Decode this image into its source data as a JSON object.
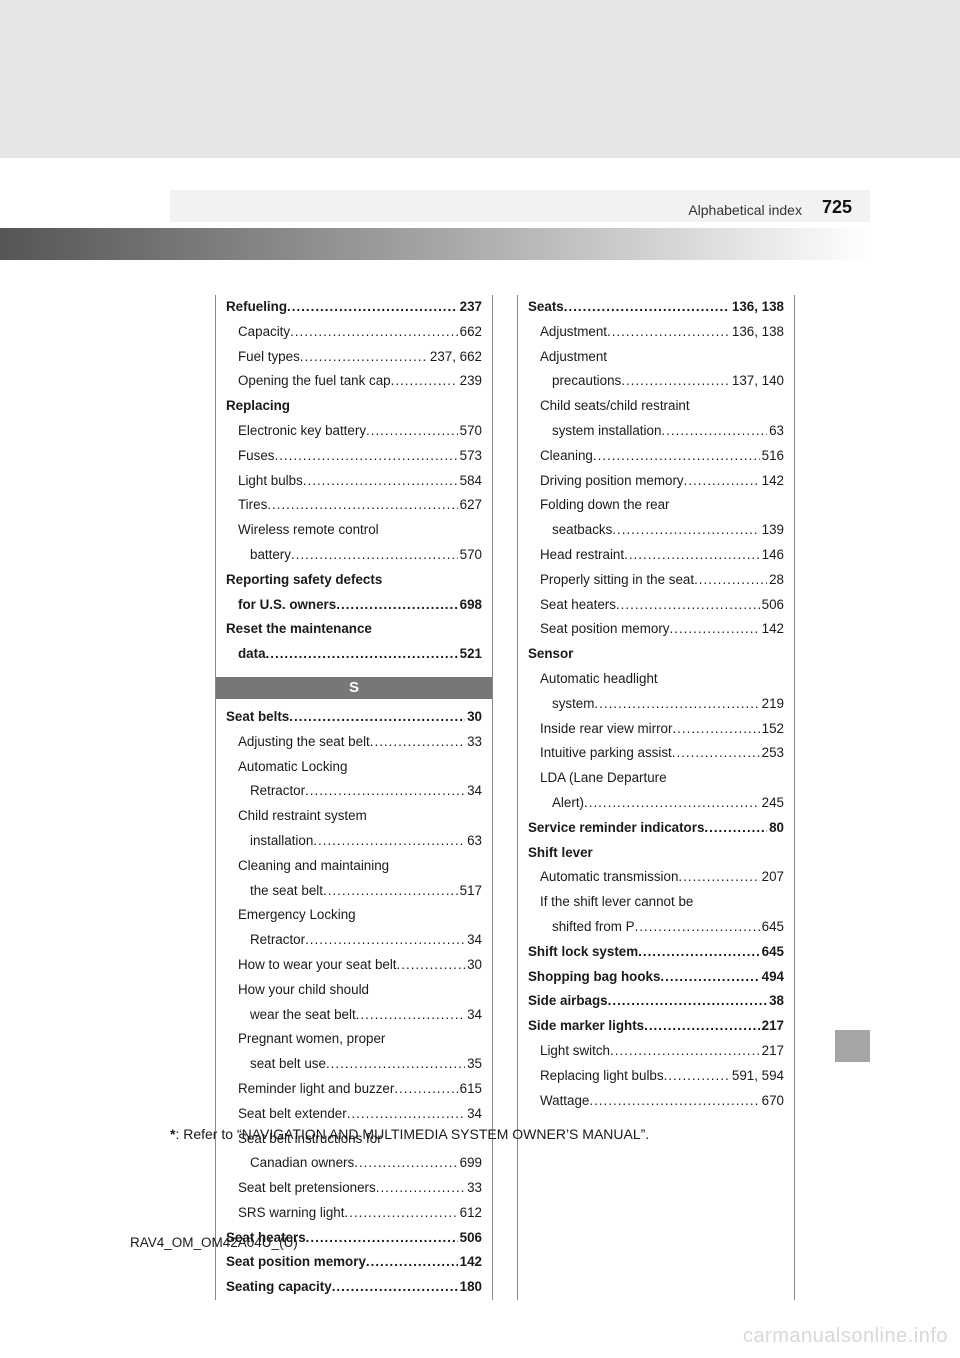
{
  "header": {
    "section_title": "Alphabetical index",
    "page_number": "725"
  },
  "left_column": [
    {
      "type": "entry",
      "bold": true,
      "indent": 0,
      "label": "Refueling",
      "page": "237"
    },
    {
      "type": "entry",
      "indent": 1,
      "label": "Capacity",
      "page": "662"
    },
    {
      "type": "entry",
      "indent": 1,
      "label": "Fuel types",
      "page": "237, 662"
    },
    {
      "type": "entry",
      "indent": 1,
      "label": "Opening the fuel tank cap",
      "page": "239"
    },
    {
      "type": "heading",
      "bold": true,
      "indent": 0,
      "label": "Replacing"
    },
    {
      "type": "entry",
      "indent": 1,
      "label": "Electronic key battery",
      "page": "570"
    },
    {
      "type": "entry",
      "indent": 1,
      "label": "Fuses",
      "page": "573"
    },
    {
      "type": "entry",
      "indent": 1,
      "label": "Light bulbs",
      "page": "584"
    },
    {
      "type": "entry",
      "indent": 1,
      "label": "Tires",
      "page": "627"
    },
    {
      "type": "heading",
      "indent": 1,
      "label": "Wireless remote control"
    },
    {
      "type": "entry",
      "indent": 2,
      "label": "battery",
      "page": "570"
    },
    {
      "type": "heading",
      "bold": true,
      "indent": 0,
      "label": "Reporting safety defects"
    },
    {
      "type": "entry",
      "bold": true,
      "indent": 1,
      "label": "for U.S. owners",
      "page": "698"
    },
    {
      "type": "heading",
      "bold": true,
      "indent": 0,
      "label": "Reset the maintenance"
    },
    {
      "type": "entry",
      "bold": true,
      "indent": 1,
      "label": "data",
      "page": "521"
    },
    {
      "type": "letter",
      "label": "S"
    },
    {
      "type": "entry",
      "bold": true,
      "indent": 0,
      "label": "Seat belts",
      "page": "30"
    },
    {
      "type": "entry",
      "indent": 1,
      "label": "Adjusting the seat belt",
      "page": "33"
    },
    {
      "type": "heading",
      "indent": 1,
      "label": "Automatic Locking"
    },
    {
      "type": "entry",
      "indent": 2,
      "label": "Retractor",
      "page": "34"
    },
    {
      "type": "heading",
      "indent": 1,
      "label": "Child restraint system"
    },
    {
      "type": "entry",
      "indent": 2,
      "label": "installation",
      "page": "63"
    },
    {
      "type": "heading",
      "indent": 1,
      "label": "Cleaning and maintaining"
    },
    {
      "type": "entry",
      "indent": 2,
      "label": "the seat belt",
      "page": "517"
    },
    {
      "type": "heading",
      "indent": 1,
      "label": "Emergency Locking"
    },
    {
      "type": "entry",
      "indent": 2,
      "label": "Retractor",
      "page": "34"
    },
    {
      "type": "entry",
      "indent": 1,
      "label": "How to wear your seat belt",
      "page": "30"
    },
    {
      "type": "heading",
      "indent": 1,
      "label": "How your child should"
    },
    {
      "type": "entry",
      "indent": 2,
      "label": "wear the seat belt",
      "page": "34"
    },
    {
      "type": "heading",
      "indent": 1,
      "label": "Pregnant women, proper"
    },
    {
      "type": "entry",
      "indent": 2,
      "label": "seat belt use",
      "page": "35"
    },
    {
      "type": "entry",
      "indent": 1,
      "label": "Reminder light and buzzer",
      "page": "615"
    },
    {
      "type": "entry",
      "indent": 1,
      "label": "Seat belt extender",
      "page": "34"
    },
    {
      "type": "heading",
      "indent": 1,
      "label": "Seat belt instructions for"
    },
    {
      "type": "entry",
      "indent": 2,
      "label": "Canadian owners",
      "page": "699"
    },
    {
      "type": "entry",
      "indent": 1,
      "label": "Seat belt pretensioners",
      "page": "33"
    },
    {
      "type": "entry",
      "indent": 1,
      "label": "SRS warning light",
      "page": "612"
    },
    {
      "type": "entry",
      "bold": true,
      "indent": 0,
      "label": "Seat heaters",
      "page": "506"
    },
    {
      "type": "entry",
      "bold": true,
      "indent": 0,
      "label": "Seat position memory",
      "page": "142"
    },
    {
      "type": "entry",
      "bold": true,
      "indent": 0,
      "label": "Seating capacity",
      "page": "180"
    }
  ],
  "right_column": [
    {
      "type": "entry",
      "bold": true,
      "indent": 0,
      "label": "Seats",
      "page": "136, 138"
    },
    {
      "type": "entry",
      "indent": 1,
      "label": "Adjustment",
      "page": "136, 138"
    },
    {
      "type": "heading",
      "indent": 1,
      "label": "Adjustment"
    },
    {
      "type": "entry",
      "indent": 2,
      "label": "precautions",
      "page": "137, 140"
    },
    {
      "type": "heading",
      "indent": 1,
      "label": "Child seats/child restraint"
    },
    {
      "type": "entry",
      "indent": 2,
      "label": "system installation",
      "page": "63"
    },
    {
      "type": "entry",
      "indent": 1,
      "label": "Cleaning",
      "page": "516"
    },
    {
      "type": "entry",
      "indent": 1,
      "label": "Driving position memory",
      "page": "142"
    },
    {
      "type": "heading",
      "indent": 1,
      "label": "Folding down the rear"
    },
    {
      "type": "entry",
      "indent": 2,
      "label": "seatbacks",
      "page": "139"
    },
    {
      "type": "entry",
      "indent": 1,
      "label": "Head restraint",
      "page": "146"
    },
    {
      "type": "entry",
      "indent": 1,
      "label": "Properly sitting in the seat",
      "page": "28"
    },
    {
      "type": "entry",
      "indent": 1,
      "label": "Seat heaters",
      "page": "506"
    },
    {
      "type": "entry",
      "indent": 1,
      "label": "Seat position memory",
      "page": "142"
    },
    {
      "type": "heading",
      "bold": true,
      "indent": 0,
      "label": "Sensor"
    },
    {
      "type": "heading",
      "indent": 1,
      "label": "Automatic headlight"
    },
    {
      "type": "entry",
      "indent": 2,
      "label": "system",
      "page": "219"
    },
    {
      "type": "entry",
      "indent": 1,
      "label": "Inside rear view mirror",
      "page": "152"
    },
    {
      "type": "entry",
      "indent": 1,
      "label": "Intuitive parking assist",
      "page": "253"
    },
    {
      "type": "heading",
      "indent": 1,
      "label": "LDA (Lane Departure"
    },
    {
      "type": "entry",
      "indent": 2,
      "label": "Alert)",
      "page": "245"
    },
    {
      "type": "entry",
      "bold": true,
      "indent": 0,
      "label": "Service reminder indicators",
      "page": "80"
    },
    {
      "type": "heading",
      "bold": true,
      "indent": 0,
      "label": "Shift lever"
    },
    {
      "type": "entry",
      "indent": 1,
      "label": "Automatic transmission",
      "page": "207"
    },
    {
      "type": "heading",
      "indent": 1,
      "label": "If the shift lever cannot be"
    },
    {
      "type": "entry",
      "indent": 2,
      "label": "shifted from P",
      "page": "645"
    },
    {
      "type": "entry",
      "bold": true,
      "indent": 0,
      "label": "Shift lock system",
      "page": "645"
    },
    {
      "type": "entry",
      "bold": true,
      "indent": 0,
      "label": "Shopping bag hooks",
      "page": "494"
    },
    {
      "type": "entry",
      "bold": true,
      "indent": 0,
      "label": "Side airbags",
      "page": "38"
    },
    {
      "type": "entry",
      "bold": true,
      "indent": 0,
      "label": "Side marker lights",
      "page": "217"
    },
    {
      "type": "entry",
      "indent": 1,
      "label": "Light switch",
      "page": "217"
    },
    {
      "type": "entry",
      "indent": 1,
      "label": "Replacing light bulbs",
      "page": "591, 594"
    },
    {
      "type": "entry",
      "indent": 1,
      "label": "Wattage",
      "page": "670"
    }
  ],
  "footnote": {
    "star": "*",
    "text": ": Refer to “NAVIGATION AND MULTIMEDIA SYSTEM OWNER’S MANUAL”."
  },
  "doc_id": "RAV4_OM_OM42A04U_(U)",
  "watermark": "carmanualsonline.info"
}
